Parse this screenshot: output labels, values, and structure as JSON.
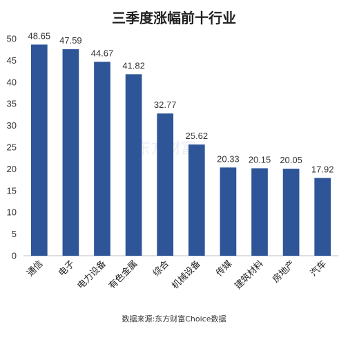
{
  "chart_data": {
    "type": "bar",
    "title": "三季度涨幅前十行业",
    "categories": [
      "通信",
      "电子",
      "电力设备",
      "有色金属",
      "综合",
      "机械设备",
      "传媒",
      "建筑材料",
      "房地产",
      "汽车"
    ],
    "values": [
      48.65,
      47.59,
      44.67,
      41.82,
      32.77,
      25.62,
      20.33,
      20.15,
      20.05,
      17.92
    ],
    "data_labels": [
      "48.65",
      "47.59",
      "44.67",
      "41.82",
      "32.77",
      "25.62",
      "20.33",
      "20.15",
      "20.05",
      "17.92"
    ],
    "ylim": [
      0,
      50
    ],
    "yticks": [
      0,
      5,
      10,
      15,
      20,
      25,
      30,
      35,
      40,
      45,
      50
    ],
    "xlabel": "",
    "ylabel": "",
    "grid": false,
    "bar_color": "#2e5597",
    "source": "数据来源:东方财富Choice数据",
    "watermark": "东方财富"
  }
}
